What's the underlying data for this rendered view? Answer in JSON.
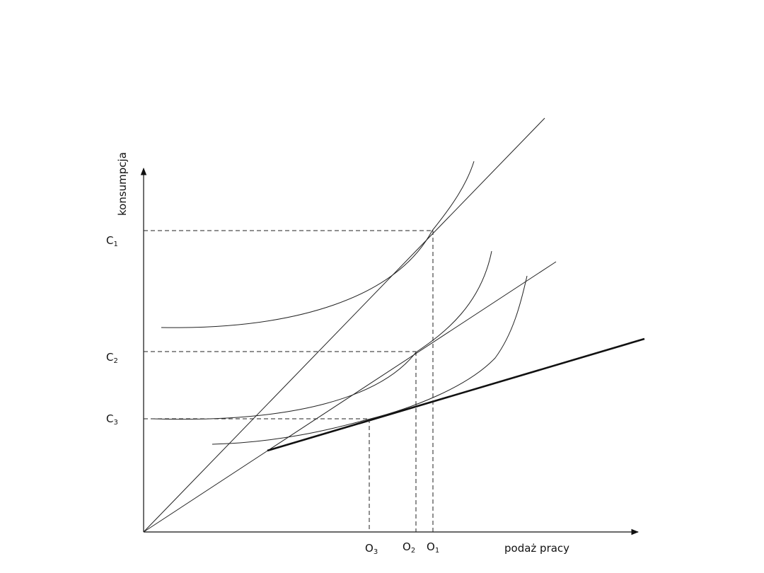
{
  "axes": {
    "y_label": "konsumpcja",
    "x_label": "podaż pracy"
  },
  "y_ticks": [
    {
      "main": "C",
      "sub": "1"
    },
    {
      "main": "C",
      "sub": "2"
    },
    {
      "main": "C",
      "sub": "3"
    }
  ],
  "x_ticks": [
    {
      "main": "O",
      "sub": "3"
    },
    {
      "main": "O",
      "sub": "2"
    },
    {
      "main": "O",
      "sub": "1"
    }
  ]
}
